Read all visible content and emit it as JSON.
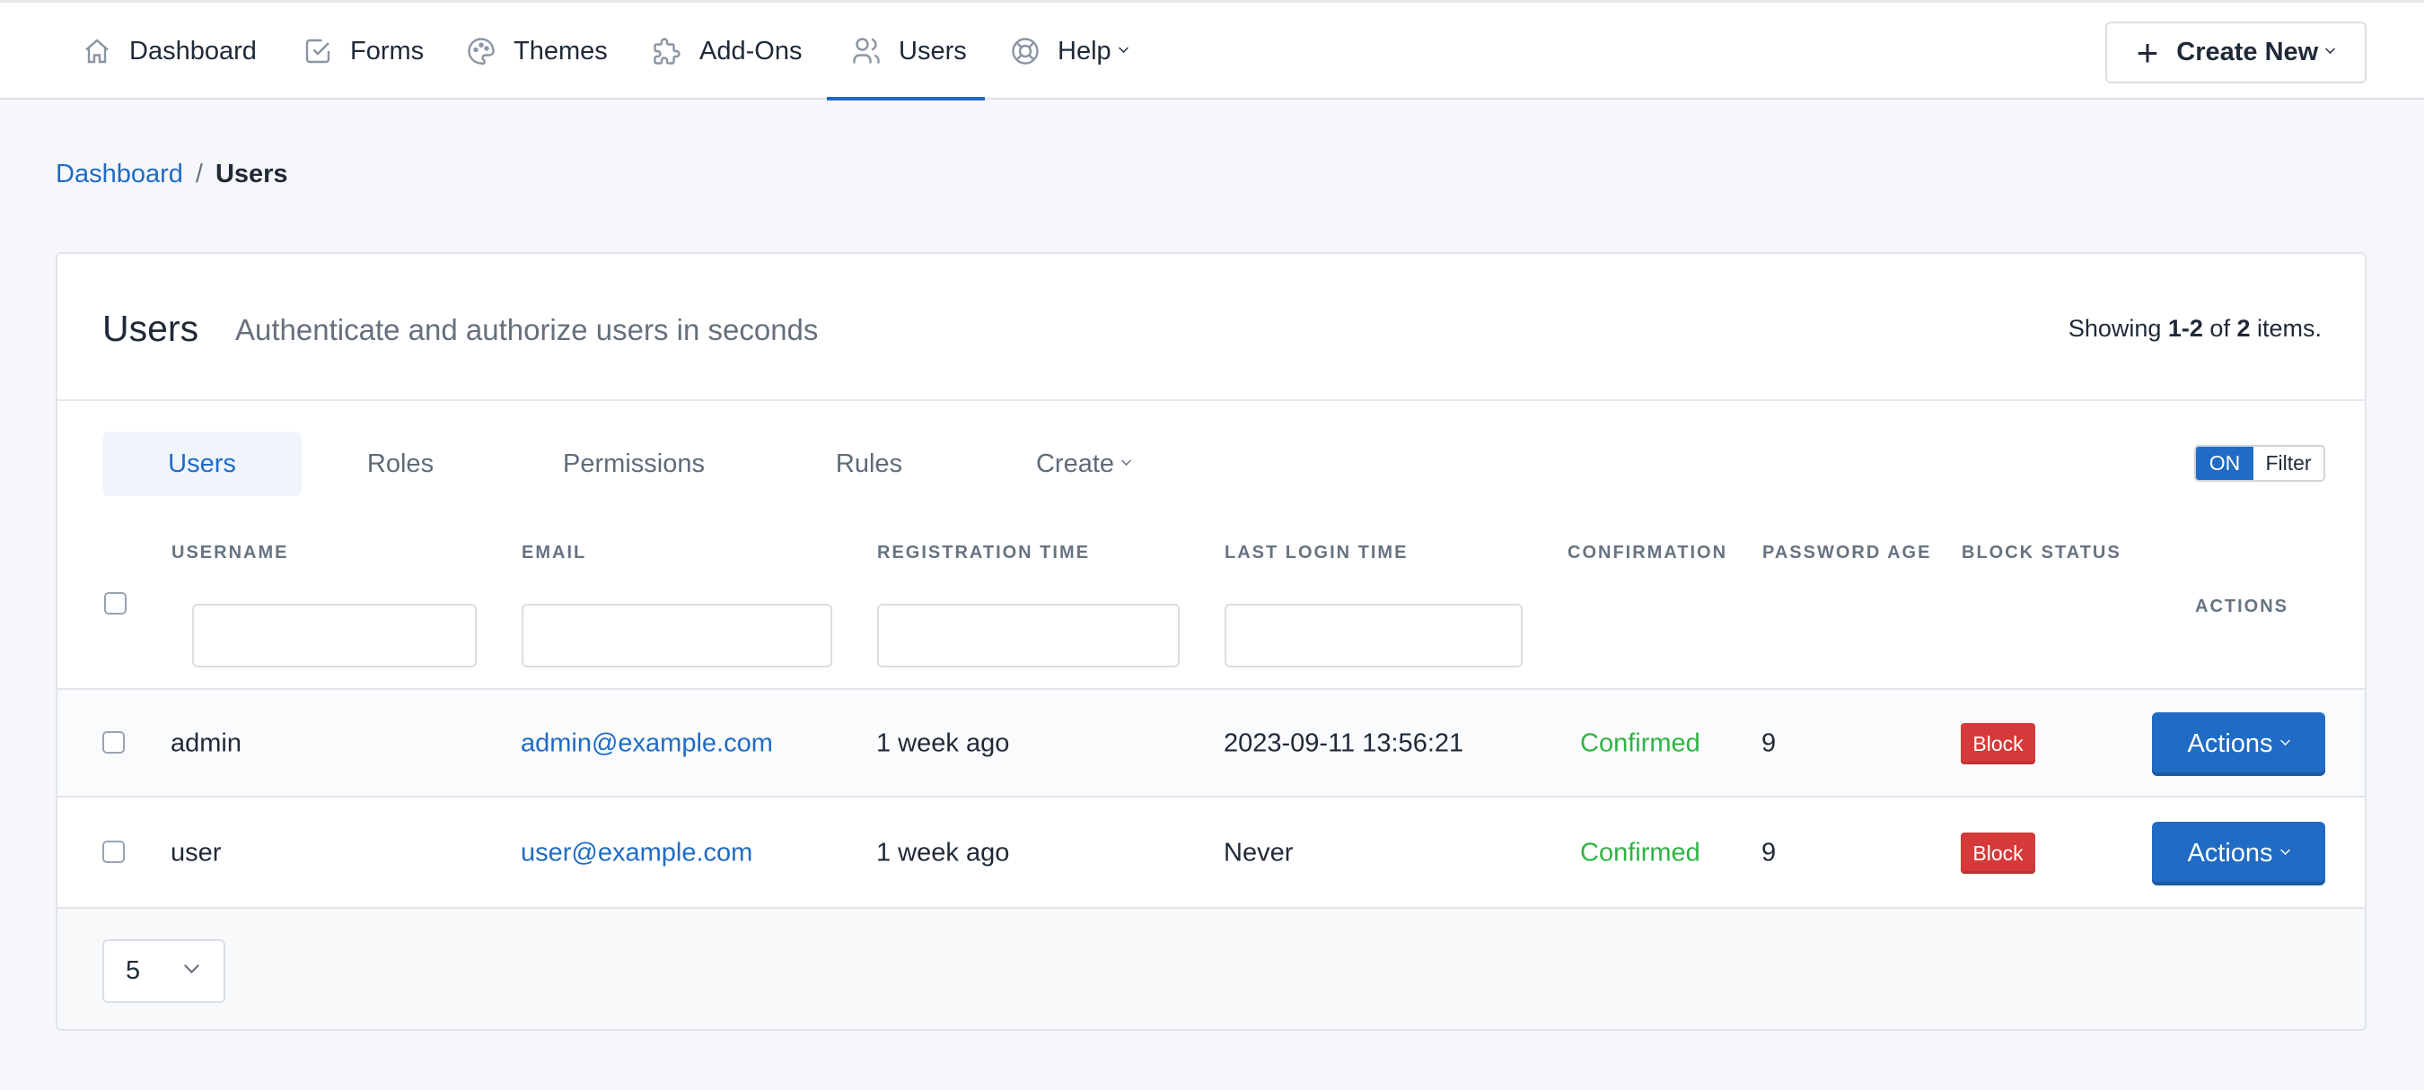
{
  "nav": {
    "items": [
      {
        "label": "Dashboard",
        "icon": "home-icon"
      },
      {
        "label": "Forms",
        "icon": "checkbox-icon"
      },
      {
        "label": "Themes",
        "icon": "palette-icon"
      },
      {
        "label": "Add-Ons",
        "icon": "puzzle-icon"
      },
      {
        "label": "Users",
        "icon": "users-icon",
        "active": true
      },
      {
        "label": "Help",
        "icon": "lifebuoy-icon",
        "dropdown": true
      }
    ],
    "create_new": "Create New"
  },
  "breadcrumb": {
    "parent": "Dashboard",
    "separator": "/",
    "current": "Users"
  },
  "card": {
    "title": "Users",
    "subtitle": "Authenticate and authorize users in seconds",
    "summary_prefix": "Showing ",
    "summary_range": "1-2",
    "summary_of": " of ",
    "summary_total": "2",
    "summary_suffix": " items.",
    "tabs": [
      "Users",
      "Roles",
      "Permissions",
      "Rules",
      "Create"
    ],
    "filter_toggle": {
      "state": "ON",
      "label": "Filter"
    },
    "columns": [
      "USERNAME",
      "EMAIL",
      "REGISTRATION TIME",
      "LAST LOGIN TIME",
      "CONFIRMATION",
      "PASSWORD AGE",
      "BLOCK STATUS",
      "ACTIONS"
    ],
    "rows": [
      {
        "username": "admin",
        "email": "admin@example.com",
        "registration": "1 week ago",
        "last_login": "2023-09-11 13:56:21",
        "confirmation": "Confirmed",
        "password_age": "9",
        "block": "Block",
        "actions": "Actions"
      },
      {
        "username": "user",
        "email": "user@example.com",
        "registration": "1 week ago",
        "last_login": "Never",
        "confirmation": "Confirmed",
        "password_age": "9",
        "block": "Block",
        "actions": "Actions"
      }
    ],
    "page_size": "5"
  },
  "colors": {
    "accent": "#206bc4",
    "danger": "#d63939",
    "success": "#2fb344"
  }
}
